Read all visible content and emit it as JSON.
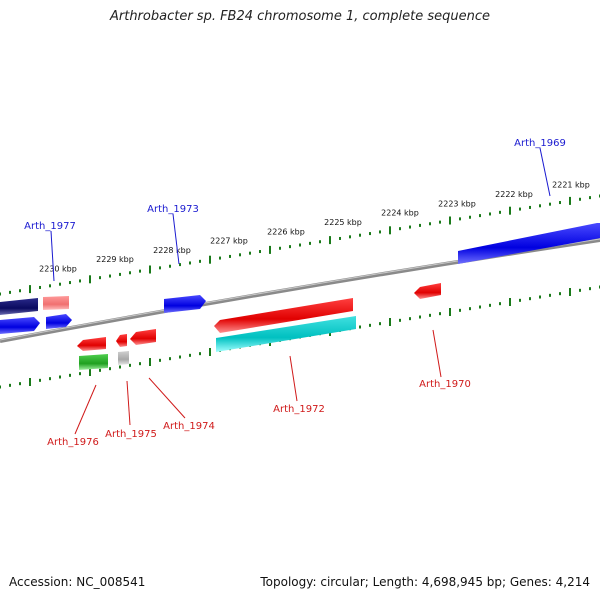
{
  "title": "Arthrobacter sp. FB24 chromosome 1, complete sequence",
  "footer": {
    "accession": "Accession: NC_008541",
    "summary": "Topology: circular; Length: 4,698,945 bp; Genes: 4,214"
  },
  "colors": {
    "forward_label": "#1a1ad0",
    "reverse_label": "#d01a1a",
    "tick": "#1a7a1a",
    "backbone": "#888888"
  },
  "kbp_ticks": [
    "2221 kbp",
    "2222 kbp",
    "2223 kbp",
    "2224 kbp",
    "2225 kbp",
    "2226 kbp",
    "2227 kbp",
    "2228 kbp",
    "2229 kbp",
    "2230 kbp"
  ],
  "genes": [
    {
      "name": "Arth_1969",
      "strand": "forward"
    },
    {
      "name": "Arth_1973",
      "strand": "forward"
    },
    {
      "name": "Arth_1977",
      "strand": "forward"
    },
    {
      "name": "Arth_1970",
      "strand": "reverse"
    },
    {
      "name": "Arth_1972",
      "strand": "reverse"
    },
    {
      "name": "Arth_1974",
      "strand": "reverse"
    },
    {
      "name": "Arth_1975",
      "strand": "reverse"
    },
    {
      "name": "Arth_1976",
      "strand": "reverse"
    }
  ]
}
